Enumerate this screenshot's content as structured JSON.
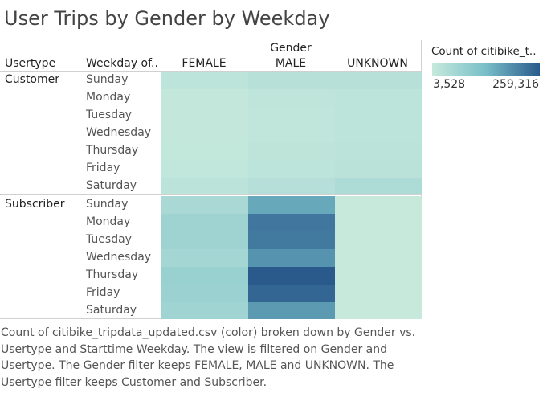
{
  "title": "User Trips by Gender by Weekday",
  "headers": {
    "col_group": "Gender",
    "usertype": "Usertype",
    "weekday": "Weekday of..",
    "genders": [
      "FEMALE",
      "MALE",
      "UNKNOWN"
    ]
  },
  "legend": {
    "title": "Count of citibike_t..",
    "min_label": "3,528",
    "max_label": "259,316",
    "color_low": "#c6e9dc",
    "color_high": "#2a5a8c"
  },
  "caption": "Count of citibike_tripdata_updated.csv (color) broken down by Gender vs. Usertype and Starttime Weekday. The view is filtered on Gender and Usertype. The Gender filter keeps FEMALE, MALE and UNKNOWN. The Usertype filter keeps Customer and Subscriber.",
  "chart_data": {
    "type": "heatmap",
    "title": "User Trips by Gender by Weekday",
    "columns": [
      "FEMALE",
      "MALE",
      "UNKNOWN"
    ],
    "column_group_label": "Gender",
    "row_group_labels": [
      "Usertype",
      "Weekday of.."
    ],
    "rows": [
      {
        "usertype": "Customer",
        "weekday": "Sunday",
        "values": [
          18000,
          28000,
          30000
        ]
      },
      {
        "usertype": "Customer",
        "weekday": "Monday",
        "values": [
          9000,
          15000,
          19000
        ]
      },
      {
        "usertype": "Customer",
        "weekday": "Tuesday",
        "values": [
          8000,
          14000,
          18000
        ]
      },
      {
        "usertype": "Customer",
        "weekday": "Wednesday",
        "values": [
          8000,
          14000,
          18000
        ]
      },
      {
        "usertype": "Customer",
        "weekday": "Thursday",
        "values": [
          10000,
          17000,
          21000
        ]
      },
      {
        "usertype": "Customer",
        "weekday": "Friday",
        "values": [
          11000,
          19000,
          24000
        ]
      },
      {
        "usertype": "Customer",
        "weekday": "Saturday",
        "values": [
          22000,
          32000,
          44000
        ]
      },
      {
        "usertype": "Subscriber",
        "weekday": "Sunday",
        "values": [
          50000,
          160000,
          3528
        ]
      },
      {
        "usertype": "Subscriber",
        "weekday": "Monday",
        "values": [
          68000,
          222000,
          3900
        ]
      },
      {
        "usertype": "Subscriber",
        "weekday": "Tuesday",
        "values": [
          69000,
          220000,
          4000
        ]
      },
      {
        "usertype": "Subscriber",
        "weekday": "Wednesday",
        "values": [
          60000,
          187000,
          3900
        ]
      },
      {
        "usertype": "Subscriber",
        "weekday": "Thursday",
        "values": [
          78000,
          259316,
          4200
        ]
      },
      {
        "usertype": "Subscriber",
        "weekday": "Friday",
        "values": [
          74000,
          244000,
          4100
        ]
      },
      {
        "usertype": "Subscriber",
        "weekday": "Saturday",
        "values": [
          66000,
          178000,
          3900
        ]
      }
    ],
    "color_range": [
      3528,
      259316
    ]
  }
}
